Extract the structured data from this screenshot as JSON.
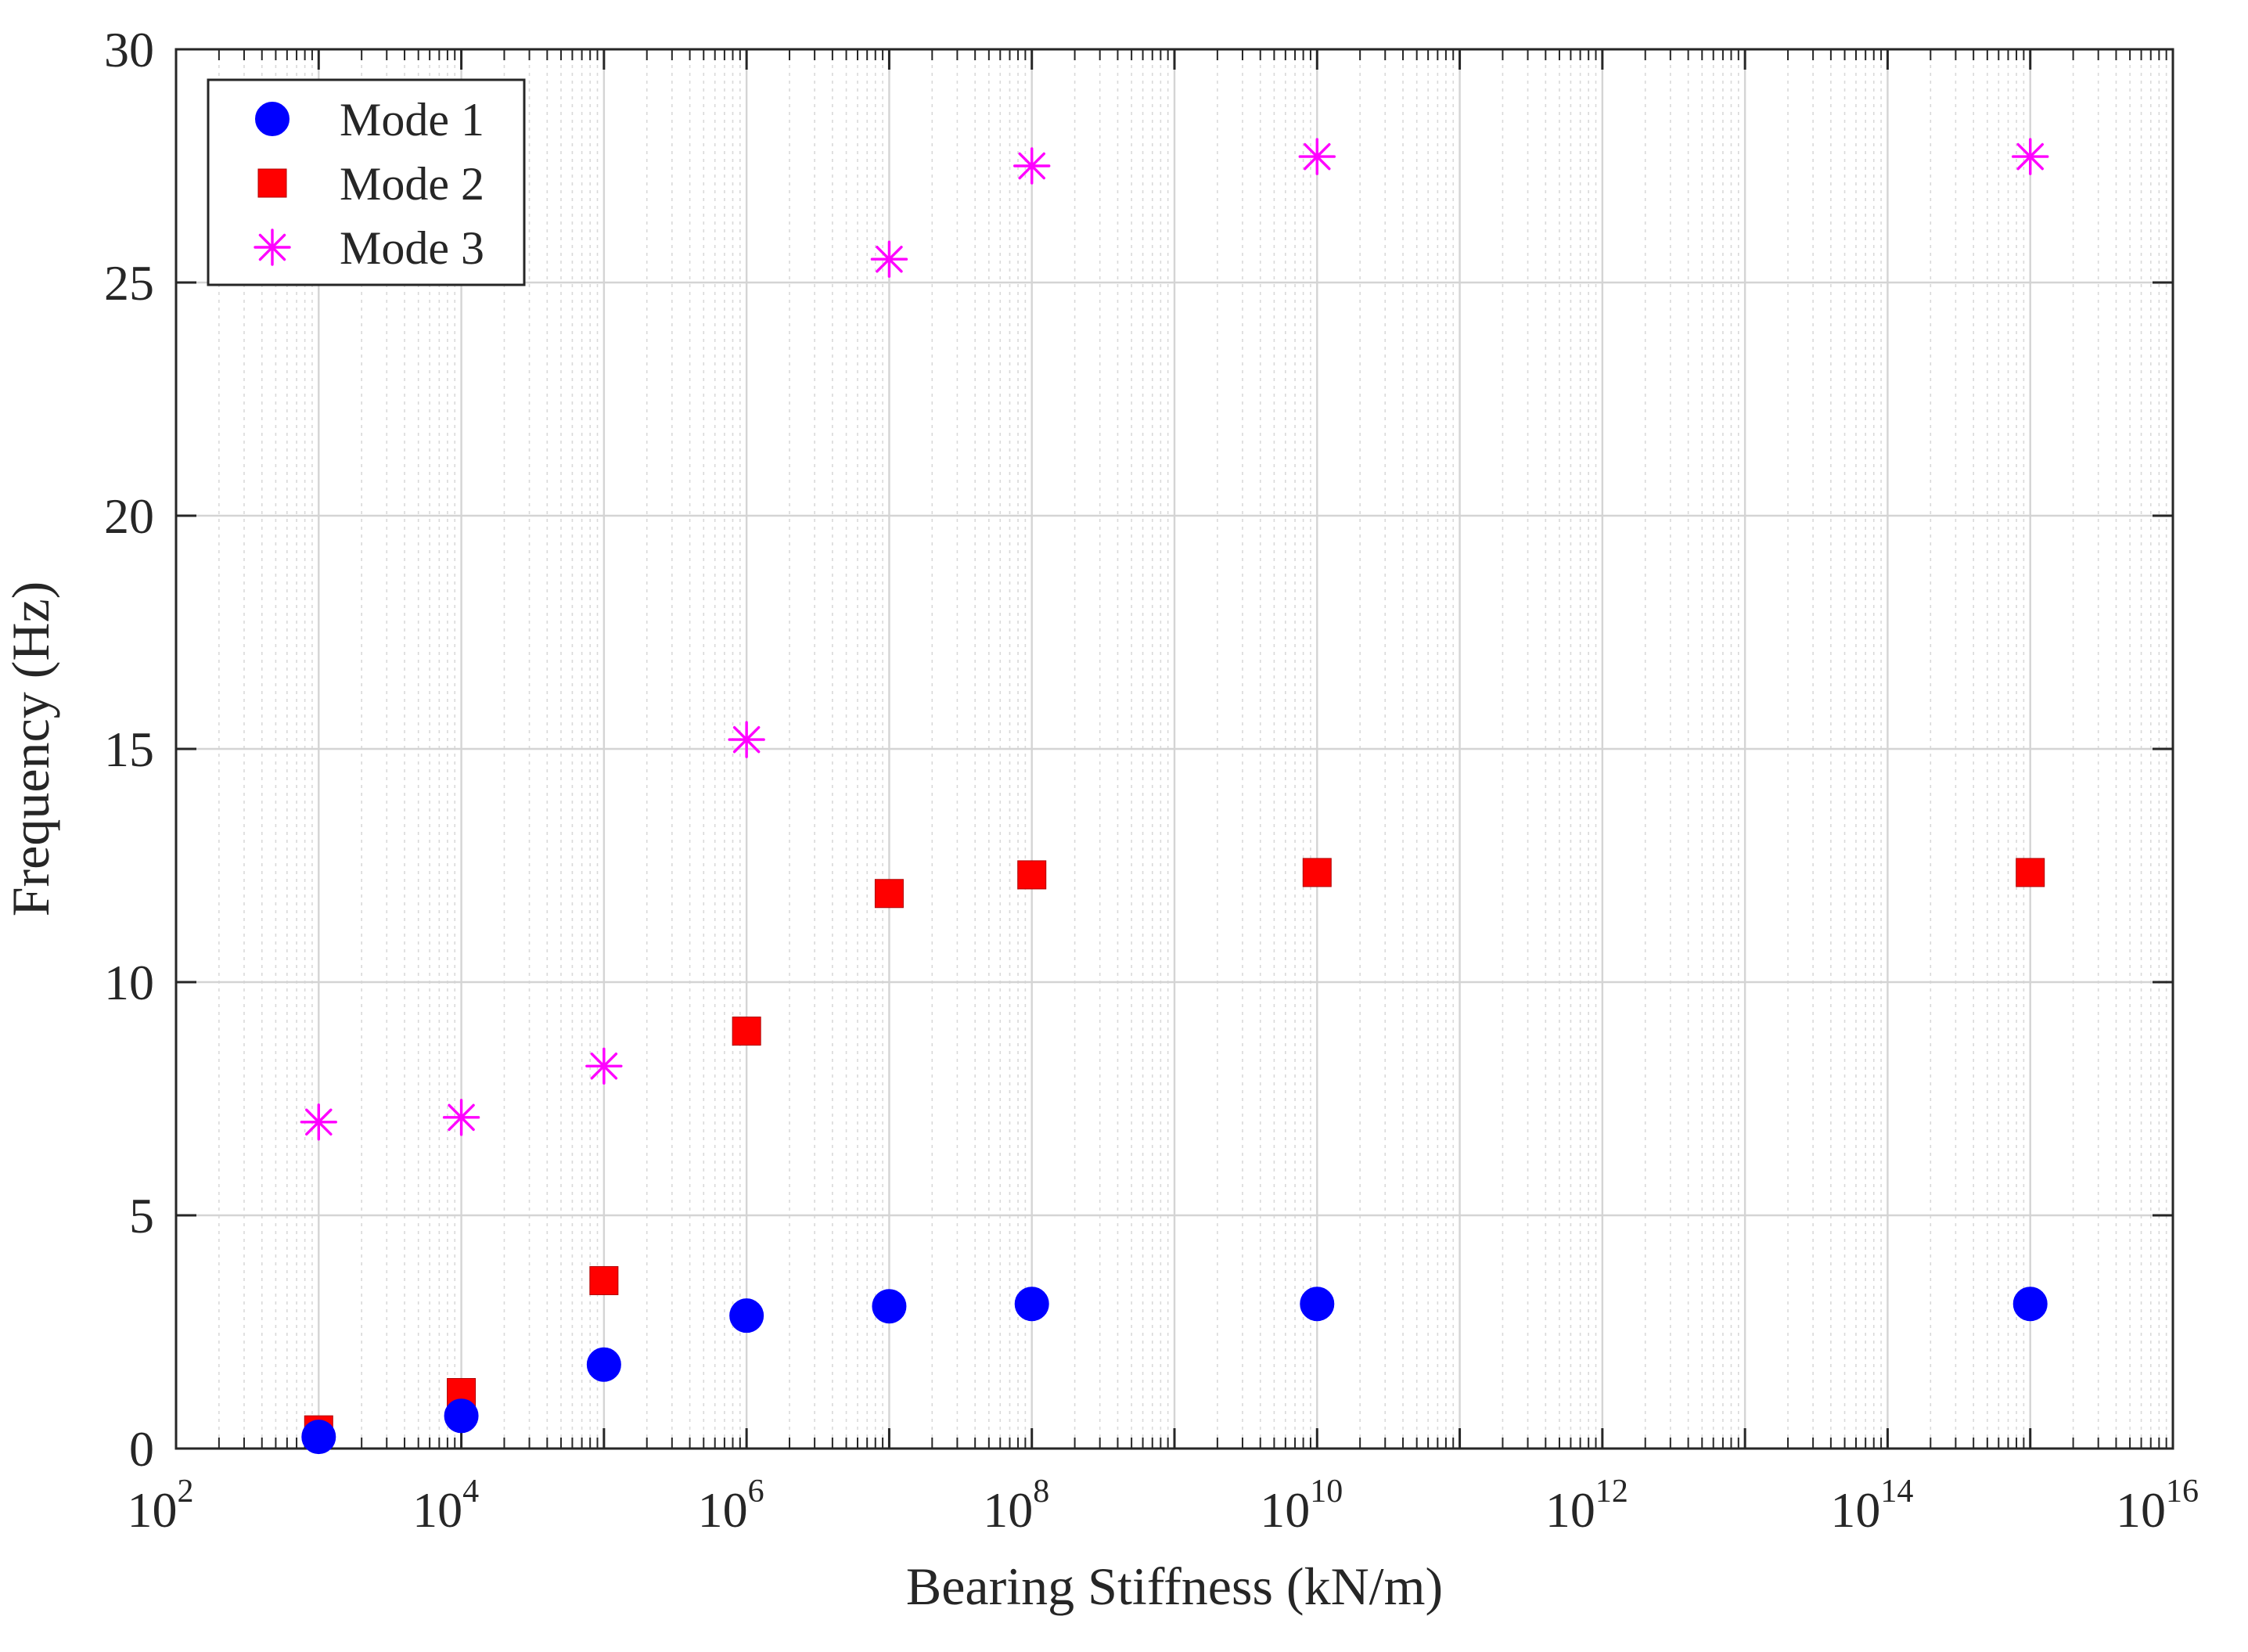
{
  "chart_data": {
    "type": "scatter",
    "title": "",
    "xlabel": "Bearing Stiffness (kN/m)",
    "ylabel": "Frequency (Hz)",
    "x_scale": "log",
    "xlim": [
      100,
      10000000000000000
    ],
    "ylim": [
      0,
      30
    ],
    "x_ticks": [
      {
        "base": "10",
        "exp": "2"
      },
      {
        "base": "10",
        "exp": "4"
      },
      {
        "base": "10",
        "exp": "6"
      },
      {
        "base": "10",
        "exp": "8"
      },
      {
        "base": "10",
        "exp": "10"
      },
      {
        "base": "10",
        "exp": "12"
      },
      {
        "base": "10",
        "exp": "14"
      },
      {
        "base": "10",
        "exp": "16"
      }
    ],
    "y_ticks": [
      "0",
      "5",
      "10",
      "15",
      "20",
      "25",
      "30"
    ],
    "grid": true,
    "legend_position": "top-left",
    "x": [
      1000,
      10000,
      100000,
      1000000,
      10000000,
      100000000,
      10000000000,
      1000000000000000
    ],
    "series": [
      {
        "name": "Mode 1",
        "marker": "circle",
        "color": "#0000FF",
        "values": [
          0.25,
          0.7,
          1.8,
          2.85,
          3.05,
          3.1,
          3.1,
          3.1
        ]
      },
      {
        "name": "Mode 2",
        "marker": "square",
        "color": "#FF0000",
        "values": [
          0.4,
          1.2,
          3.6,
          8.95,
          11.9,
          12.3,
          12.35,
          12.35
        ]
      },
      {
        "name": "Mode 3",
        "marker": "asterisk",
        "color": "#FF00FF",
        "values": [
          7.0,
          7.1,
          8.2,
          15.2,
          25.5,
          27.5,
          27.7,
          27.7
        ]
      }
    ]
  }
}
